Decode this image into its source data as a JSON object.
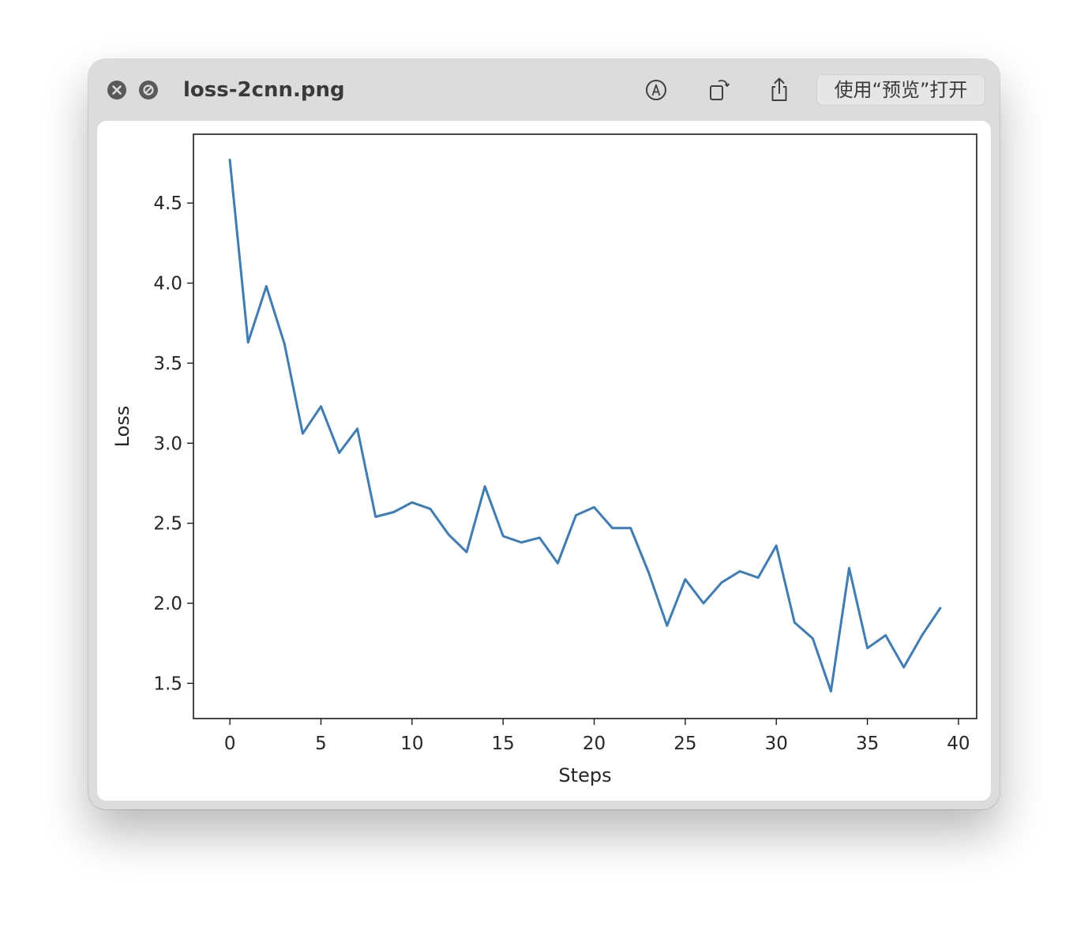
{
  "window": {
    "title": "loss-2cnn.png",
    "open_button_label": "使用“预览”打开"
  },
  "icons": {
    "close": "close-icon",
    "hide": "hide-icon",
    "markup": "markup-icon",
    "rotate": "rotate-icon",
    "share": "share-icon"
  },
  "colors": {
    "line": "#3b7dba",
    "titlebar": "#dcdcdc"
  },
  "chart_data": {
    "type": "line",
    "xlabel": "Steps",
    "ylabel": "Loss",
    "xlim": [
      -2,
      41
    ],
    "ylim": [
      1.28,
      4.93
    ],
    "xticks": [
      0,
      5,
      10,
      15,
      20,
      25,
      30,
      35,
      40
    ],
    "yticks": [
      1.5,
      2.0,
      2.5,
      3.0,
      3.5,
      4.0,
      4.5
    ],
    "ytick_labels": [
      "1.5",
      "2.0",
      "2.5",
      "3.0",
      "3.5",
      "4.0",
      "4.5"
    ],
    "grid": false,
    "series": [
      {
        "x": [
          0,
          1,
          2,
          3,
          4,
          5,
          6,
          7,
          8,
          9,
          10,
          11,
          12,
          13,
          14,
          15,
          16,
          17,
          18,
          19,
          20,
          21,
          22,
          23,
          24,
          25,
          26,
          27,
          28,
          29,
          30,
          31,
          32,
          33,
          34,
          35,
          36,
          37,
          38,
          39
        ],
        "y": [
          4.77,
          3.63,
          3.98,
          3.62,
          3.06,
          3.23,
          2.94,
          3.09,
          2.54,
          2.57,
          2.63,
          2.59,
          2.43,
          2.32,
          2.73,
          2.42,
          2.38,
          2.41,
          2.25,
          2.55,
          2.6,
          2.47,
          2.47,
          2.19,
          1.86,
          2.15,
          2.0,
          2.13,
          2.2,
          2.16,
          2.36,
          1.88,
          1.78,
          1.45,
          2.22,
          1.72,
          1.8,
          1.6,
          1.8,
          1.97
        ]
      }
    ]
  }
}
